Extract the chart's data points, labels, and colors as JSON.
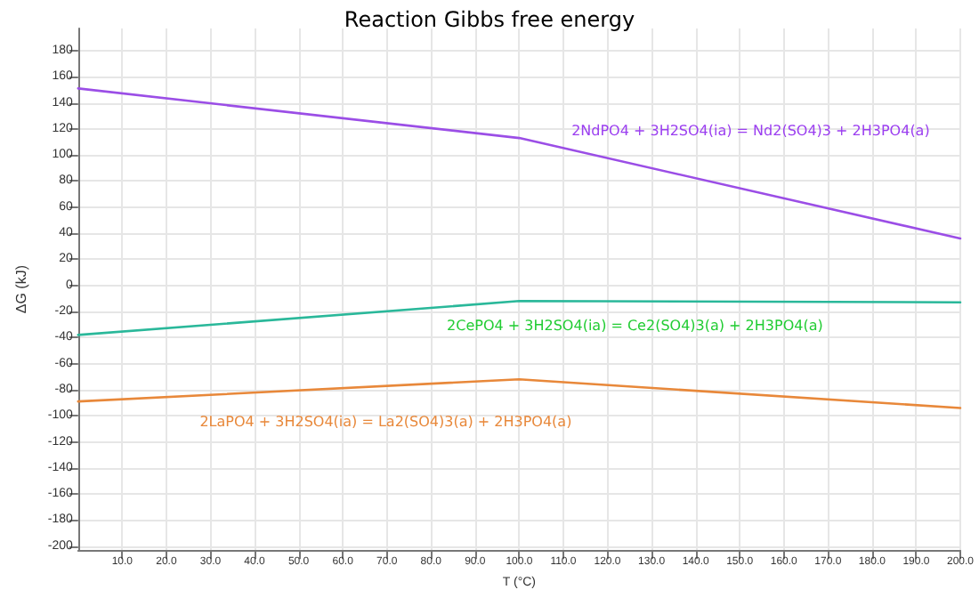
{
  "chart_data": {
    "type": "line",
    "title": "Reaction Gibbs free energy",
    "xlabel": "T (°C)",
    "ylabel": "ΔG (kJ)",
    "xlim": [
      0,
      200
    ],
    "ylim": [
      -203,
      197
    ],
    "xticks": [
      {
        "value": 10,
        "label": "10.0"
      },
      {
        "value": 20,
        "label": "20.0"
      },
      {
        "value": 30,
        "label": "30.0"
      },
      {
        "value": 40,
        "label": "40.0"
      },
      {
        "value": 50,
        "label": "50.0"
      },
      {
        "value": 60,
        "label": "60.0"
      },
      {
        "value": 70,
        "label": "70.0"
      },
      {
        "value": 80,
        "label": "80.0"
      },
      {
        "value": 90,
        "label": "90.0"
      },
      {
        "value": 100,
        "label": "100.0"
      },
      {
        "value": 110,
        "label": "110.0"
      },
      {
        "value": 120,
        "label": "120.0"
      },
      {
        "value": 130,
        "label": "130.0"
      },
      {
        "value": 140,
        "label": "140.0"
      },
      {
        "value": 150,
        "label": "150.0"
      },
      {
        "value": 160,
        "label": "160.0"
      },
      {
        "value": 170,
        "label": "170.0"
      },
      {
        "value": 180,
        "label": "180.0"
      },
      {
        "value": 190,
        "label": "190.0"
      },
      {
        "value": 200,
        "label": "200.0"
      }
    ],
    "yticks": [
      -200,
      -180,
      -160,
      -140,
      -120,
      -100,
      -80,
      -60,
      -40,
      -20,
      0,
      20,
      40,
      60,
      80,
      100,
      120,
      140,
      160,
      180
    ],
    "x": [
      0,
      100,
      200
    ],
    "series": [
      {
        "name": "2NdPO4 + 3H2SO4(ia) = Nd2(SO4)3 + 2H3PO4(a)",
        "color": "#9b4ee6",
        "values": [
          151,
          113,
          36
        ]
      },
      {
        "name": "2CePO4 + 3H2SO4(ia) = Ce2(SO4)3(a) + 2H3PO4(a)",
        "color": "#2ab89a",
        "values": [
          -38,
          -12,
          -13
        ]
      },
      {
        "name": "2LaPO4 + 3H2SO4(ia) = La2(SO4)3(a) + 2H3PO4(a)",
        "color": "#e8883a",
        "values": [
          -89,
          -72,
          -94
        ]
      }
    ],
    "grid": true,
    "marker": "none",
    "line_style": "solid"
  }
}
